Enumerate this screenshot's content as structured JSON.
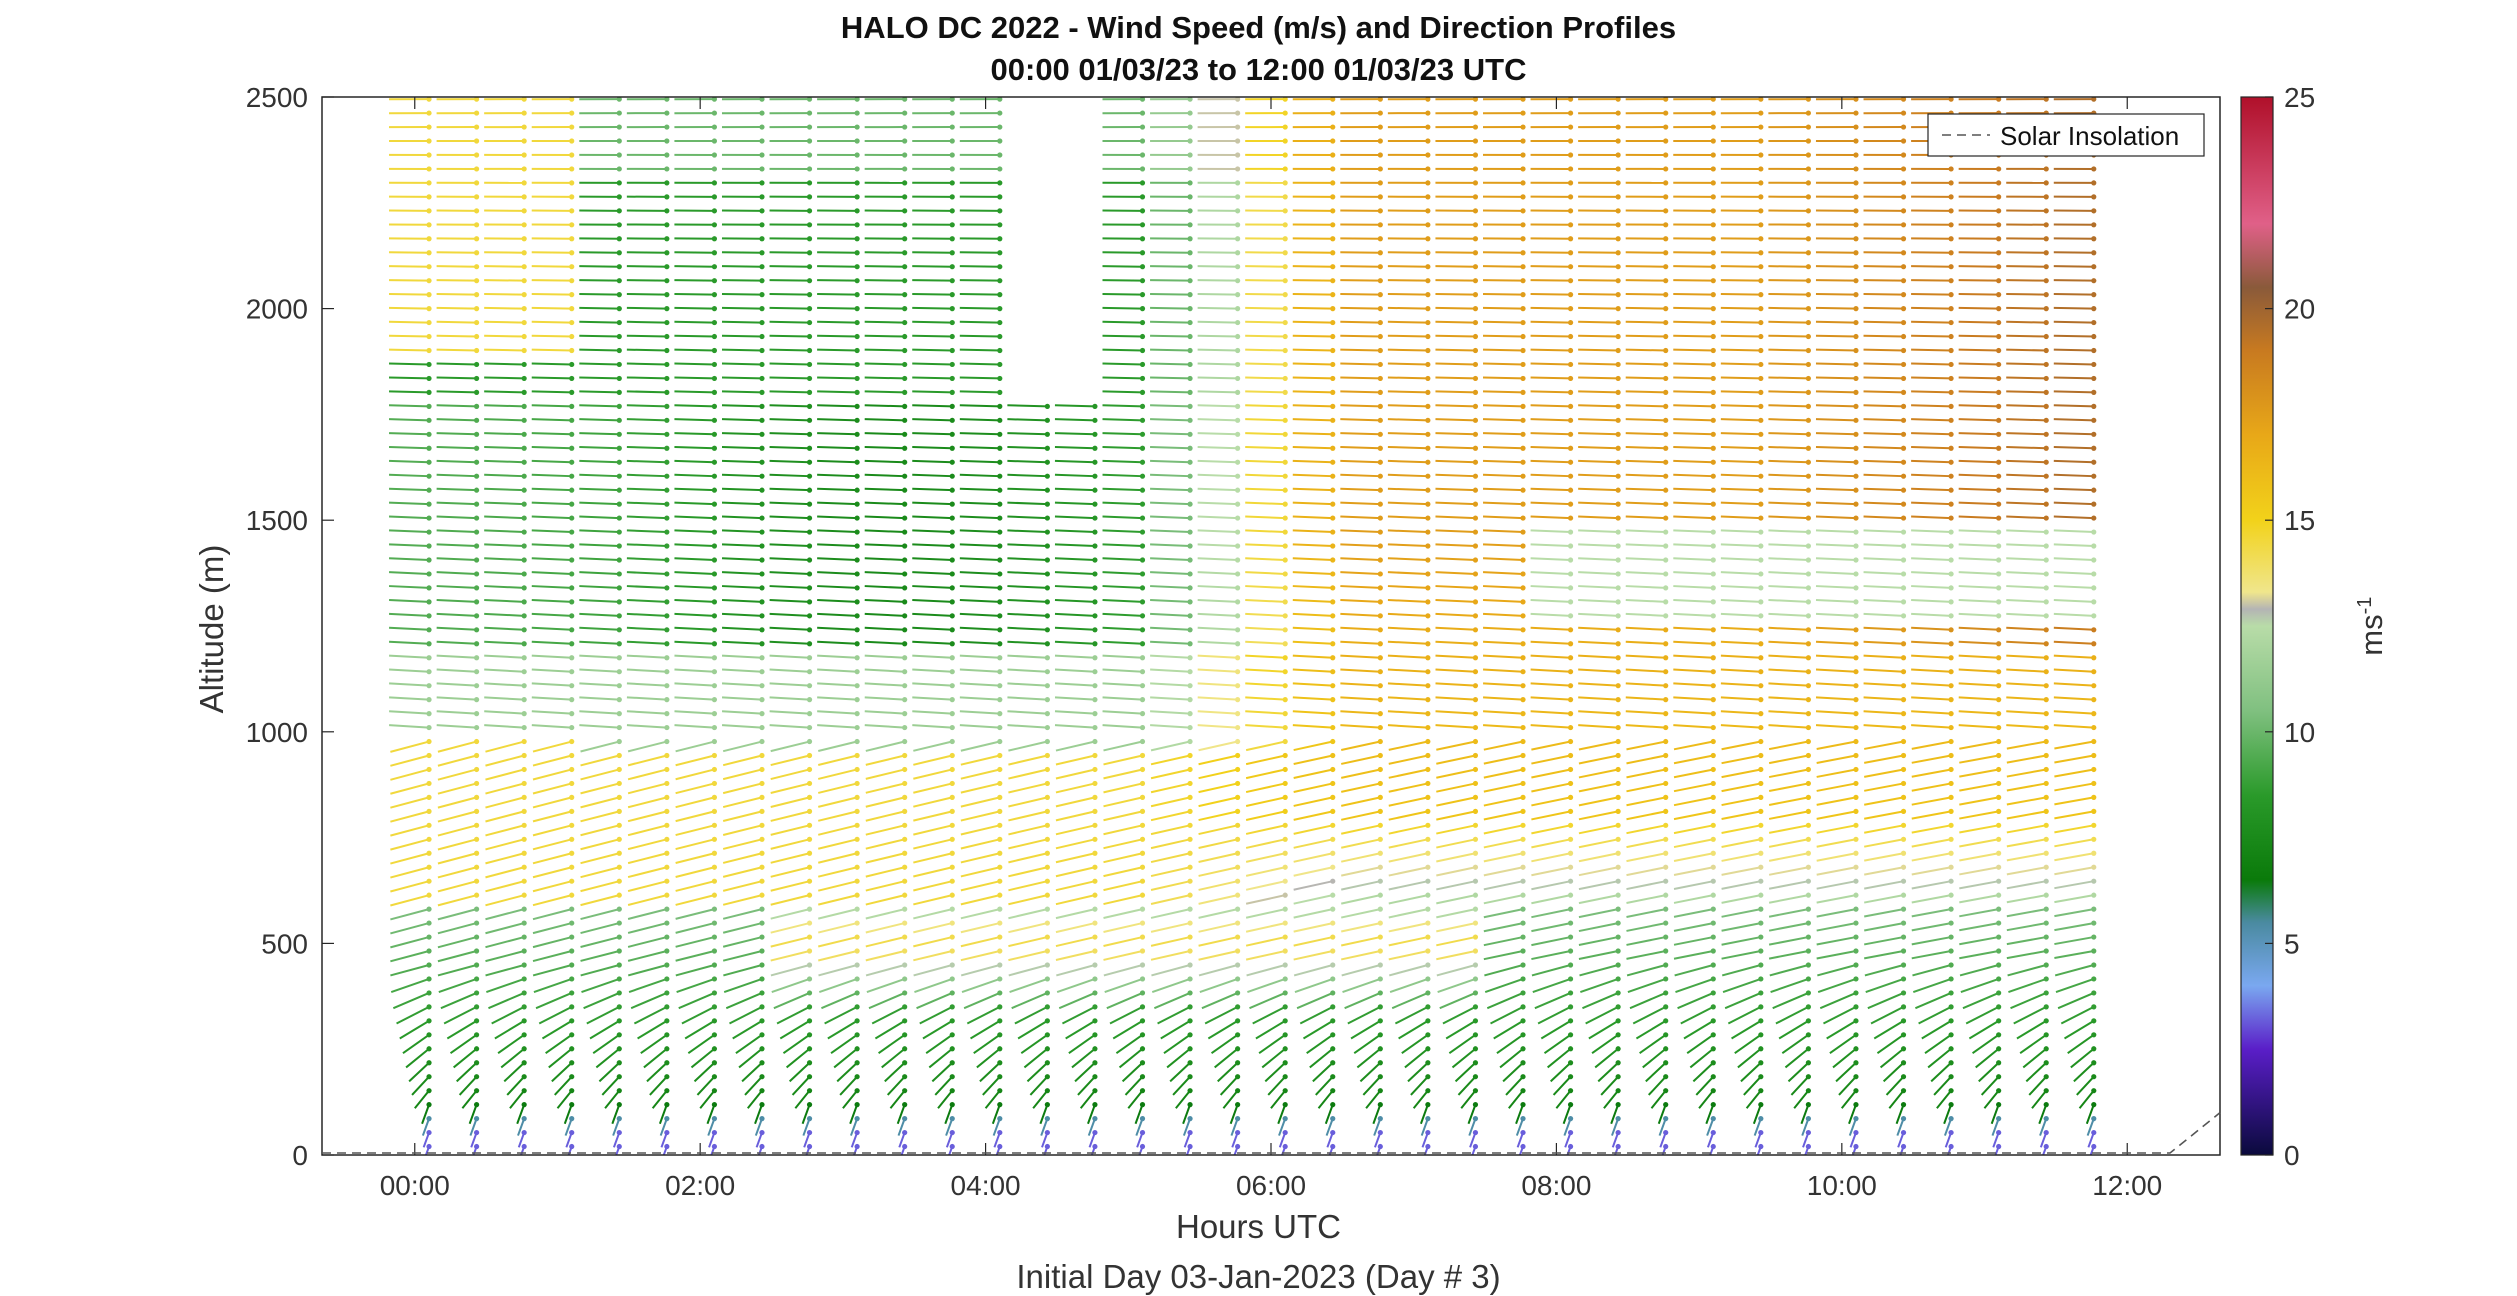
{
  "chart_data": {
    "type": "barb-profile",
    "title_line1": "HALO DC 2022 - Wind Speed (m/s) and Direction Profiles",
    "title_line2": "00:00 01/03/23 to 12:00 01/03/23  UTC",
    "xlabel": "Hours UTC",
    "subtitle": "Initial Day 03-Jan-2023 (Day # 3)",
    "ylabel": "Altitude (m)",
    "x_ticks": [
      "00:00",
      "02:00",
      "04:00",
      "06:00",
      "08:00",
      "10:00",
      "12:00"
    ],
    "x_tick_hours": [
      0,
      2,
      4,
      6,
      8,
      10,
      12
    ],
    "xlim_hours": [
      -0.65,
      12.65
    ],
    "y_ticks": [
      "0",
      "500",
      "1000",
      "1500",
      "2000",
      "2500"
    ],
    "ylim": [
      0,
      2500
    ],
    "profile_interval_hours": 0.3333,
    "profile_start_hours": 0.1,
    "profile_end_hours": 12.0,
    "level_interval_m": 33,
    "gap": {
      "hours": [
        4.2,
        4.8
      ],
      "altitude_m": [
        1800,
        2500
      ]
    },
    "speed_field_description": "Bands of wind speed: ~3-4 m/s near surface, 7-11 m/s at 200-600 m, 14-17 m/s above ~600 m in afternoon, 8-10 m/s at 1200-2200 m before 06:00",
    "colorbar": {
      "label": "ms",
      "label_sup": "-1",
      "ticks": [
        "0",
        "5",
        "10",
        "15",
        "20",
        "25"
      ],
      "range": [
        0,
        25
      ],
      "stops": [
        {
          "v": 0,
          "c": "#0a0a3c"
        },
        {
          "v": 2.5,
          "c": "#5a1ec8"
        },
        {
          "v": 4,
          "c": "#7aa8f0"
        },
        {
          "v": 5.5,
          "c": "#4a8aa0"
        },
        {
          "v": 6.5,
          "c": "#0a7a0a"
        },
        {
          "v": 8.5,
          "c": "#2a9a2a"
        },
        {
          "v": 10.5,
          "c": "#80c080"
        },
        {
          "v": 12.5,
          "c": "#b8dca8"
        },
        {
          "v": 12.9,
          "c": "#b4b4b4"
        },
        {
          "v": 13.3,
          "c": "#f0e68c"
        },
        {
          "v": 15,
          "c": "#f2d21a"
        },
        {
          "v": 17,
          "c": "#e8a818"
        },
        {
          "v": 19,
          "c": "#c87a20"
        },
        {
          "v": 20.5,
          "c": "#8a5a3a"
        },
        {
          "v": 22,
          "c": "#e06088"
        },
        {
          "v": 25,
          "c": "#b0102a"
        }
      ]
    },
    "legend": {
      "entry": "Solar Insolation",
      "style": "dashed",
      "color": "#555555",
      "placement": "top-right"
    }
  }
}
